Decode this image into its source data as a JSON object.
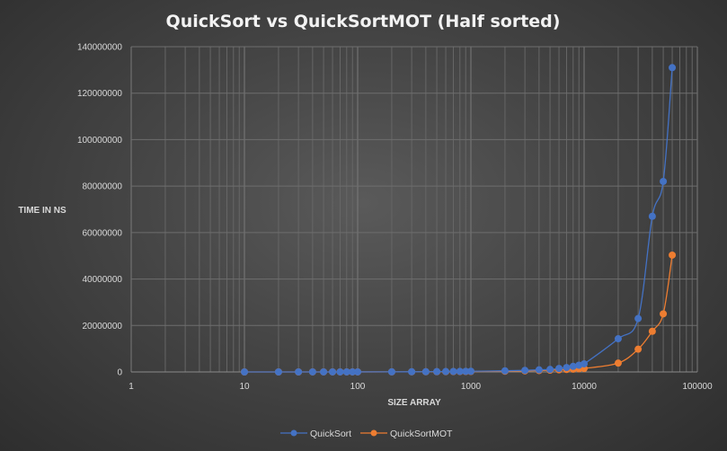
{
  "chart_data": {
    "type": "scatter",
    "title": "QuickSort  vs  QuickSortMOT  (Half sorted)",
    "xlabel": "SIZE ARRAY",
    "ylabel": "TIME IN NS",
    "x_scale": "log",
    "xlim": [
      1,
      100000
    ],
    "ylim": [
      0,
      140000000
    ],
    "x_ticks": [
      1,
      10,
      100,
      1000,
      10000,
      100000
    ],
    "x_tick_labels": [
      "1",
      "10",
      "100",
      "1000",
      "10000",
      "100000"
    ],
    "y_ticks": [
      0,
      20000000,
      40000000,
      60000000,
      80000000,
      100000000,
      120000000,
      140000000
    ],
    "y_tick_labels": [
      "0",
      "20000000",
      "40000000",
      "60000000",
      "80000000",
      "100000000",
      "120000000",
      "140000000"
    ],
    "grid": true,
    "legend_position": "bottom",
    "series": [
      {
        "name": "QuickSort",
        "color": "#4472c4",
        "x": [
          10,
          20,
          30,
          40,
          50,
          60,
          70,
          80,
          90,
          100,
          200,
          300,
          400,
          500,
          600,
          700,
          800,
          900,
          1000,
          2000,
          3000,
          4000,
          5000,
          6000,
          7000,
          8000,
          9000,
          10000,
          20000,
          30000,
          40000,
          50000,
          60000
        ],
        "y": [
          3000,
          5000,
          8000,
          10000,
          12000,
          14000,
          16000,
          18000,
          20000,
          22000,
          50000,
          80000,
          110000,
          140000,
          170000,
          200000,
          230000,
          260000,
          290000,
          500000,
          700000,
          900000,
          1100000,
          1500000,
          1900000,
          2400000,
          2900000,
          3500000,
          14300000,
          23000000,
          67000000,
          82000000,
          131000000
        ]
      },
      {
        "name": "QuickSortMOT",
        "color": "#ed7d31",
        "x": [
          10,
          20,
          30,
          40,
          50,
          60,
          70,
          80,
          90,
          100,
          200,
          300,
          400,
          500,
          600,
          700,
          800,
          900,
          1000,
          2000,
          3000,
          4000,
          5000,
          6000,
          7000,
          8000,
          9000,
          10000,
          20000,
          30000,
          40000,
          50000,
          60000
        ],
        "y": [
          2000,
          4000,
          6000,
          8000,
          9000,
          10000,
          12000,
          13000,
          14000,
          16000,
          35000,
          55000,
          75000,
          95000,
          115000,
          135000,
          155000,
          175000,
          195000,
          300000,
          450000,
          600000,
          750000,
          900000,
          1050000,
          1200000,
          1350000,
          1500000,
          3800000,
          9800000,
          17500000,
          25000000,
          50300000
        ]
      }
    ]
  }
}
